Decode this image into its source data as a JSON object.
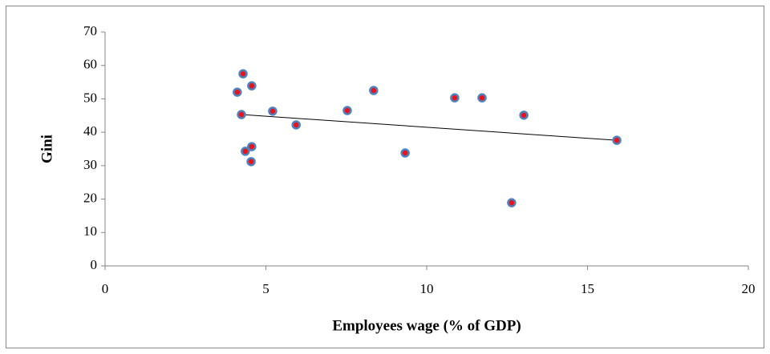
{
  "chart_data": {
    "type": "scatter",
    "x_label": "Employees wage (% of GDP)",
    "y_label": "Gini",
    "series": [
      {
        "name": "Gini",
        "color": "#e8141c",
        "edge_color": "#4f81bd",
        "x": [
          4.11,
          4.29,
          4.56,
          4.24,
          4.36,
          4.56,
          4.54,
          5.21,
          5.94,
          7.53,
          8.35,
          9.33,
          10.87,
          11.72,
          12.64,
          13.02,
          15.91
        ],
        "values": [
          52.0,
          57.5,
          53.9,
          45.3,
          34.3,
          35.7,
          31.2,
          46.3,
          42.2,
          46.5,
          52.5,
          33.8,
          50.3,
          50.3,
          18.9,
          45.1,
          37.6
        ]
      }
    ],
    "trendline": {
      "x": [
        4.24,
        15.91
      ],
      "values": [
        45.3,
        37.6
      ],
      "color": "#000000"
    },
    "xlim": [
      0,
      20
    ],
    "xticks": [
      0,
      5,
      10,
      15,
      20
    ],
    "ylim": [
      0,
      70
    ],
    "yticks": [
      0,
      10,
      20,
      30,
      40,
      50,
      60,
      70
    ],
    "grid": false
  }
}
